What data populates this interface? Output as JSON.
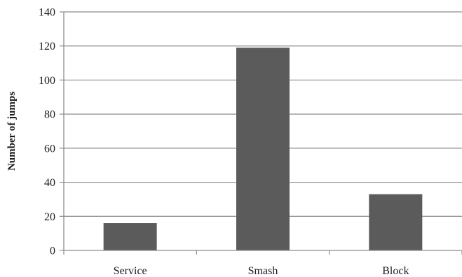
{
  "chart_data": {
    "type": "bar",
    "title": "",
    "xlabel": "",
    "ylabel": "Number of jumps",
    "categories": [
      "Service",
      "Smash",
      "Block"
    ],
    "values": [
      16,
      119,
      33
    ],
    "ylim": [
      0,
      140
    ],
    "yticks": [
      0,
      20,
      40,
      60,
      80,
      100,
      120,
      140
    ],
    "grid": true,
    "legend": "none",
    "bar_color": "#5b5b5b",
    "grid_color": "#8c8c8c",
    "axis_color": "#8c8c8c"
  }
}
